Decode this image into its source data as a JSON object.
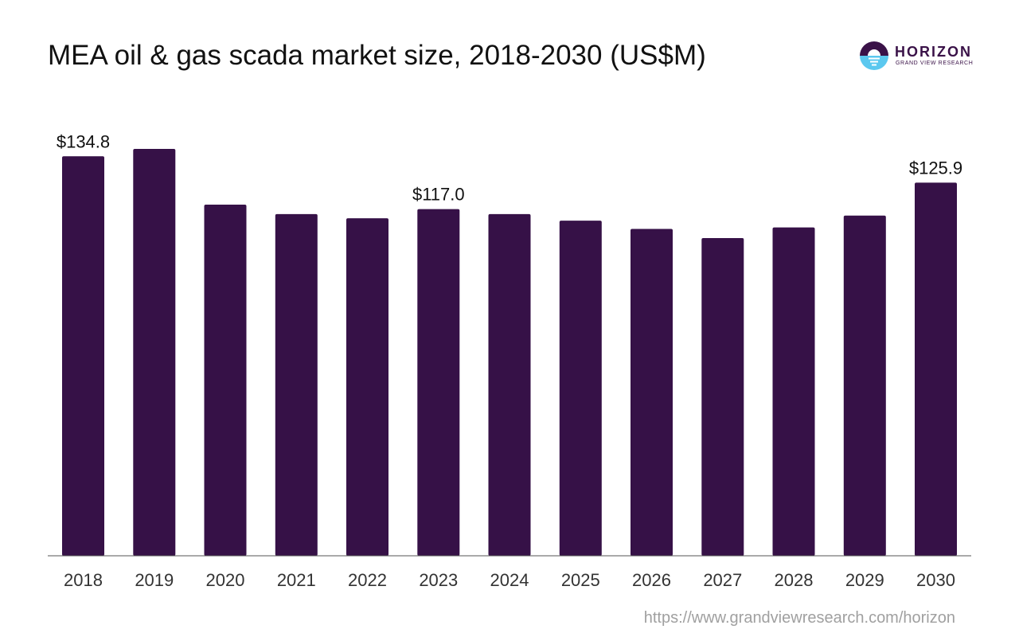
{
  "header": {
    "title": "MEA oil & gas scada market size, 2018-2030 (US$M)"
  },
  "logo": {
    "name": "HORIZON",
    "subtitle": "GRAND VIEW RESEARCH",
    "colors": {
      "dark": "#3a1248",
      "light": "#5bc8ef"
    }
  },
  "footer": {
    "source_url": "https://www.grandviewresearch.com/horizon"
  },
  "chart_data": {
    "type": "bar",
    "title": "MEA oil & gas scada market size, 2018-2030 (US$M)",
    "xlabel": "",
    "ylabel": "",
    "categories": [
      "2018",
      "2019",
      "2020",
      "2021",
      "2022",
      "2023",
      "2024",
      "2025",
      "2026",
      "2027",
      "2028",
      "2029",
      "2030"
    ],
    "values": [
      134.8,
      137.3,
      118.5,
      115.3,
      113.9,
      117.0,
      115.3,
      113.1,
      110.3,
      107.2,
      110.8,
      114.8,
      125.9
    ],
    "data_labels": [
      {
        "category": "2018",
        "text": "$134.8"
      },
      {
        "category": "2023",
        "text": "$117.0"
      },
      {
        "category": "2030",
        "text": "$125.9"
      }
    ],
    "ylim": [
      0,
      137.3
    ],
    "grid": false,
    "legend": "none",
    "bar_color": "#361147",
    "axis_color": "#555555"
  }
}
